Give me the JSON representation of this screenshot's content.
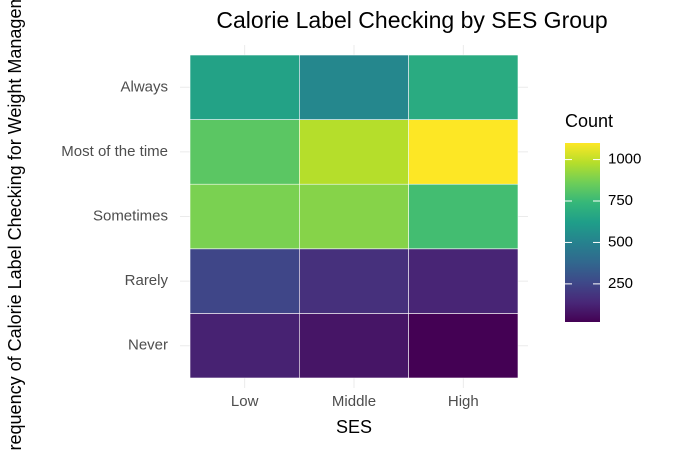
{
  "chart_data": {
    "type": "heatmap",
    "title": "Calorie Label Checking by SES Group",
    "x_label": "SES",
    "y_label": "Frequency of Calorie Label Checking for Weight Management",
    "x_categories": [
      "Low",
      "Middle",
      "High"
    ],
    "y_categories": [
      "Never",
      "Rarely",
      "Sometimes",
      "Most of the time",
      "Always"
    ],
    "values": [
      [
        120,
        80,
        20
      ],
      [
        250,
        170,
        130
      ],
      [
        880,
        900,
        770
      ],
      [
        820,
        980,
        1100
      ],
      [
        640,
        520,
        680
      ]
    ],
    "legend_title": "Count",
    "colorscale": "viridis",
    "zlim": [
      20,
      1100
    ],
    "zticks": [
      250,
      500,
      750,
      1000
    ]
  }
}
